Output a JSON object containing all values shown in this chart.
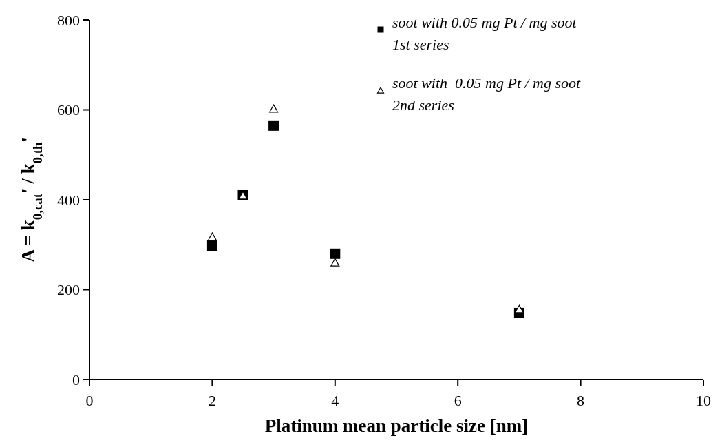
{
  "chart_data": {
    "type": "scatter",
    "xlabel": "Platinum mean particle size [nm]",
    "ylabel": "A = k$_{0,cat}$' / k$_{0,th}$'",
    "x": [
      2,
      2.5,
      3,
      4,
      7
    ],
    "series": [
      {
        "name": "soot with 0.05 mg Pt / mg soot\n1st series",
        "color": "#000000",
        "marker": "square",
        "values": [
          298,
          410,
          565,
          280,
          148
        ]
      },
      {
        "name": "soot with  0.05 mg Pt / mg soot\n2nd series",
        "color": "#000000",
        "marker": "triangle",
        "values": [
          318,
          410,
          603,
          261,
          157
        ]
      }
    ],
    "xlim": [
      0,
      10
    ],
    "xticks": [
      0,
      2,
      4,
      6,
      8,
      10
    ],
    "ylim": [
      0,
      800
    ],
    "yticks": [
      0,
      200,
      400,
      600,
      800
    ],
    "grid": false,
    "legend": "top right"
  }
}
